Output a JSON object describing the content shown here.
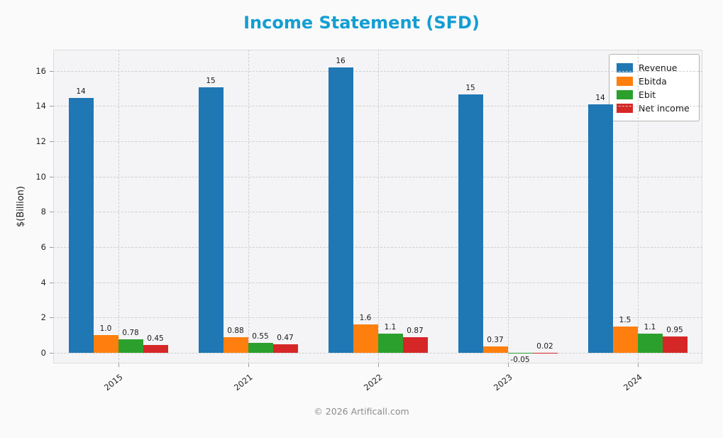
{
  "title_color": "#149ed2",
  "footer": "© 2026 Artificall.com",
  "chart_data": {
    "type": "bar",
    "title": "Income Statement (SFD)",
    "ylabel": "$(Billion)",
    "xlabel": "",
    "categories": [
      "2015",
      "2021",
      "2022",
      "2023",
      "2024"
    ],
    "series": [
      {
        "name": "Revenue",
        "color": "#1f77b4",
        "values": [
          14.45,
          15.05,
          16.2,
          14.65,
          14.1
        ],
        "labels": [
          "14",
          "15",
          "16",
          "15",
          "14"
        ]
      },
      {
        "name": "Ebitda",
        "color": "#ff7f0e",
        "values": [
          1.0,
          0.88,
          1.6,
          0.37,
          1.5
        ],
        "labels": [
          "1.0",
          "0.88",
          "1.6",
          "0.37",
          "1.5"
        ]
      },
      {
        "name": "Ebit",
        "color": "#2ca02c",
        "values": [
          0.78,
          0.55,
          1.1,
          -0.05,
          1.1
        ],
        "labels": [
          "0.78",
          "0.55",
          "1.1",
          "-0.05",
          "1.1"
        ]
      },
      {
        "name": "Net income",
        "color": "#d62728",
        "values": [
          0.45,
          0.47,
          0.87,
          0.02,
          0.95
        ],
        "labels": [
          "0.45",
          "0.47",
          "0.87",
          "0.02",
          "0.95"
        ]
      }
    ],
    "yticks": [
      0,
      2,
      4,
      6,
      8,
      10,
      12,
      14,
      16
    ],
    "ylim": [
      -0.6,
      17.2
    ],
    "grid": true,
    "legend_position": "upper right"
  }
}
